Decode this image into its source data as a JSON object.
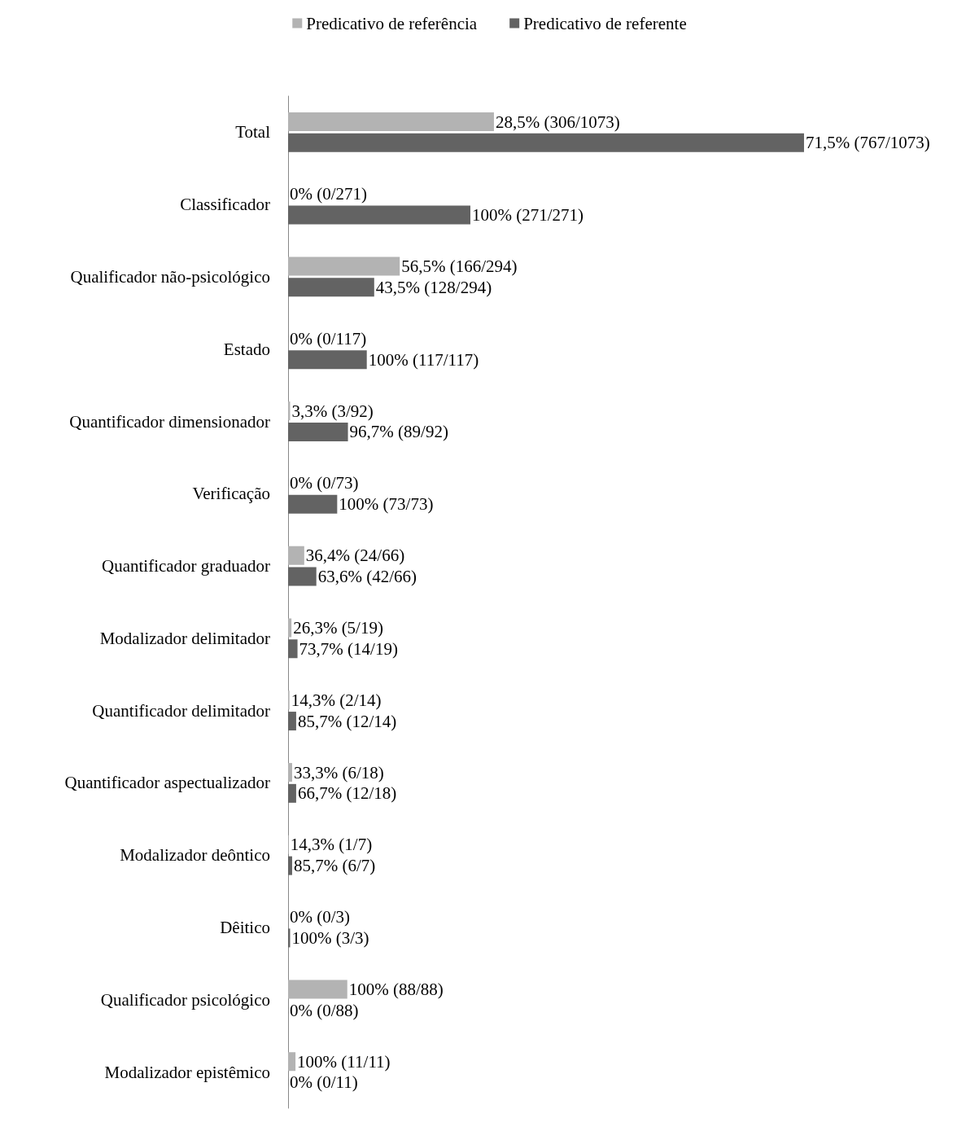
{
  "chart_data": {
    "type": "bar",
    "orientation": "horizontal",
    "legend": "top",
    "categories": [
      "Total",
      "Classificador",
      "Qualificador não-psicológico",
      "Estado",
      "Quantificador dimensionador",
      "Verificação",
      "Quantificador graduador",
      "Modalizador delimitador",
      "Quantificador delimitador",
      "Quantificador aspectualizador",
      "Modalizador deôntico",
      "Dêitico",
      "Qualificador psicológico",
      "Modalizador epistêmico"
    ],
    "series": [
      {
        "name": "Predicativo de referência",
        "color": "#b3b3b3",
        "values": [
          306,
          0,
          166,
          0,
          3,
          0,
          24,
          5,
          2,
          6,
          1,
          0,
          88,
          11
        ],
        "value_labels": [
          "28,5% (306/1073)",
          "0% (0/271)",
          "56,5% (166/294)",
          "0% (0/117)",
          "3,3% (3/92)",
          "0% (0/73)",
          "36,4% (24/66)",
          "26,3% (5/19)",
          "14,3% (2/14)",
          "33,3% (6/18)",
          "14,3% (1/7)",
          "0% (0/3)",
          "100% (88/88)",
          "100% (11/11)"
        ]
      },
      {
        "name": "Predicativo de referente",
        "color": "#636363",
        "values": [
          767,
          271,
          128,
          117,
          89,
          73,
          42,
          14,
          12,
          12,
          6,
          3,
          0,
          0
        ],
        "value_labels": [
          "71,5% (767/1073)",
          "100% (271/271)",
          "43,5% (128/294)",
          "100% (117/117)",
          "96,7% (89/92)",
          "100% (73/73)",
          "63,6% (42/66)",
          "73,7% (14/19)",
          "85,7% (12/14)",
          "66,7% (12/18)",
          "85,7% (6/7)",
          "100% (3/3)",
          "0% (0/88)",
          "0% (0/11)"
        ]
      }
    ]
  }
}
